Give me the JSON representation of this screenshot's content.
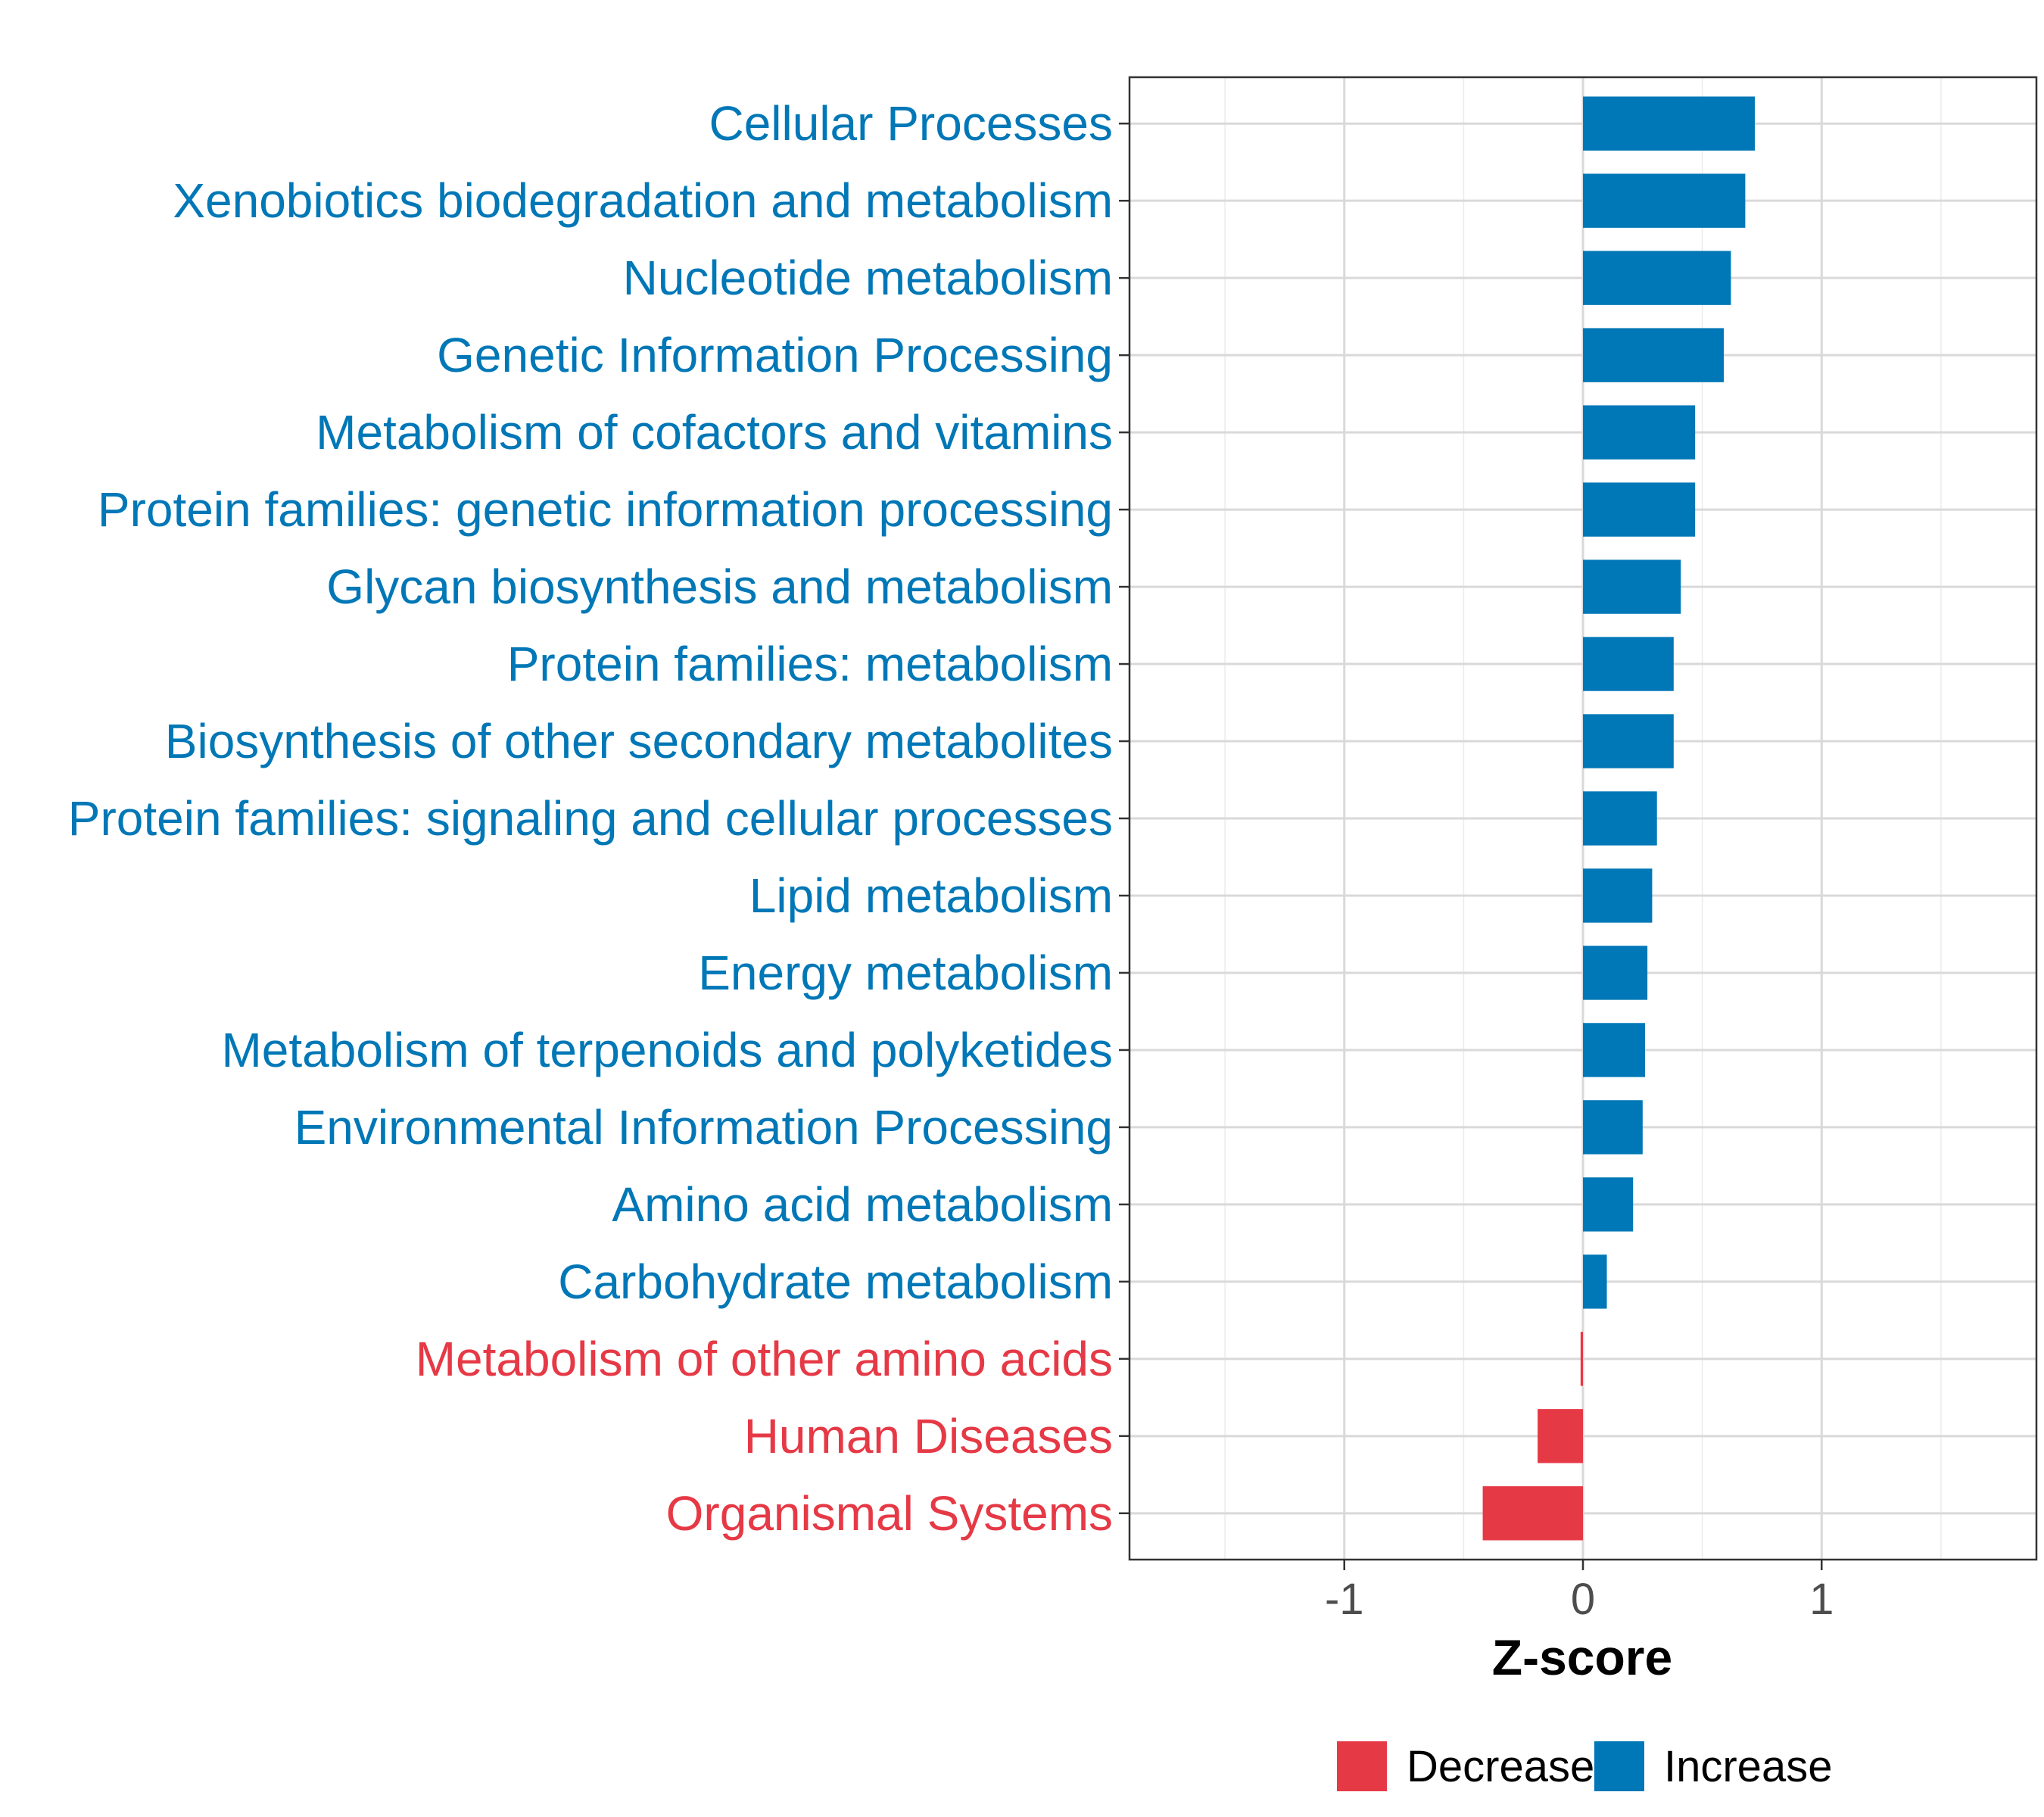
{
  "chart_data": {
    "type": "bar",
    "orientation": "horizontal",
    "title": "",
    "xlabel": "Z-score",
    "ylabel": "",
    "xlim": [
      -1.9,
      1.9
    ],
    "x_ticks": [
      -1,
      0,
      1
    ],
    "x_tick_labels": [
      "-1",
      "0",
      "1"
    ],
    "grid": true,
    "legend_position": "bottom",
    "colors": {
      "Decrease": "#e63946",
      "Increase": "#0077b6"
    },
    "legend": [
      {
        "key": "Decrease",
        "label": "Decrease"
      },
      {
        "key": "Increase",
        "label": "Increase"
      }
    ],
    "categories": [
      "Cellular Processes",
      "Xenobiotics biodegradation and metabolism",
      "Nucleotide metabolism",
      "Genetic Information Processing",
      "Metabolism of cofactors and vitamins",
      "Protein families: genetic information processing",
      "Glycan biosynthesis and metabolism",
      "Protein families: metabolism",
      "Biosynthesis of other secondary metabolites",
      "Protein families: signaling and cellular processes",
      "Lipid metabolism",
      "Energy metabolism",
      "Metabolism of terpenoids and polyketides",
      "Environmental Information Processing",
      "Amino acid metabolism",
      "Carbohydrate metabolism",
      "Metabolism of other amino acids",
      "Human Diseases",
      "Organismal Systems"
    ],
    "values": [
      0.72,
      0.68,
      0.62,
      0.59,
      0.47,
      0.47,
      0.41,
      0.38,
      0.38,
      0.31,
      0.29,
      0.27,
      0.26,
      0.25,
      0.21,
      0.1,
      -0.01,
      -0.19,
      -0.42
    ],
    "direction": [
      "Increase",
      "Increase",
      "Increase",
      "Increase",
      "Increase",
      "Increase",
      "Increase",
      "Increase",
      "Increase",
      "Increase",
      "Increase",
      "Increase",
      "Increase",
      "Increase",
      "Increase",
      "Increase",
      "Decrease",
      "Decrease",
      "Decrease"
    ]
  }
}
